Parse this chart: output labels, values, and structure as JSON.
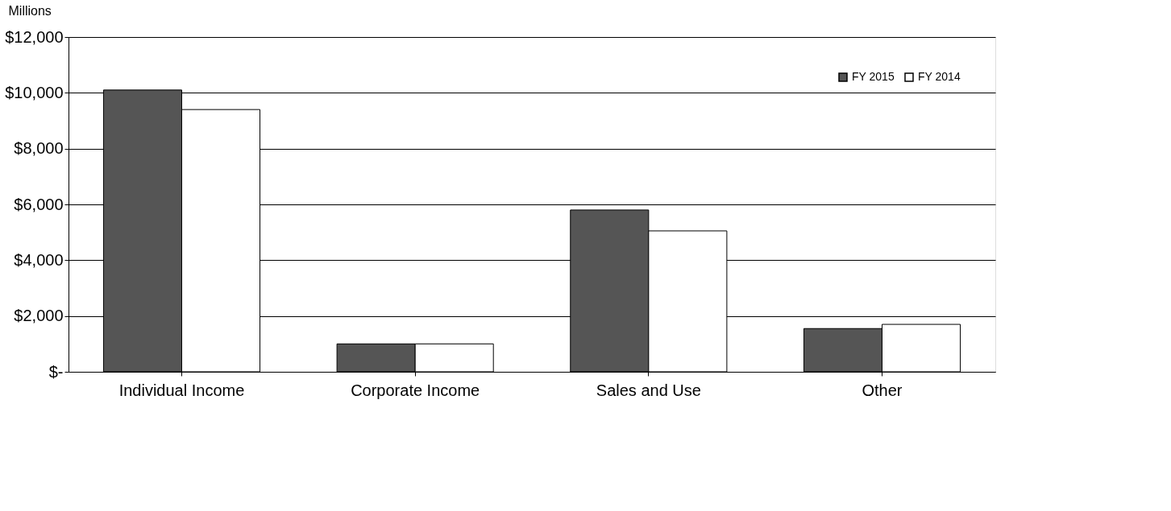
{
  "chart_data": {
    "type": "bar",
    "ylabel": "Millions",
    "categories": [
      "Individual Income",
      "Corporate Income",
      "Sales and Use",
      "Other"
    ],
    "series": [
      {
        "name": "FY 2015",
        "color": "#555555",
        "values": [
          10100,
          1000,
          5800,
          1550
        ]
      },
      {
        "name": "FY 2014",
        "color": "#ffffff",
        "values": [
          9400,
          1000,
          5050,
          1700
        ]
      }
    ],
    "ylim": [
      0,
      12000
    ],
    "yticks": [
      {
        "value": 0,
        "label": "$-"
      },
      {
        "value": 2000,
        "label": "$2,000"
      },
      {
        "value": 4000,
        "label": "$4,000"
      },
      {
        "value": 6000,
        "label": "$6,000"
      },
      {
        "value": 8000,
        "label": "$8,000"
      },
      {
        "value": 10000,
        "label": "$10,000"
      },
      {
        "value": 12000,
        "label": "$12,000"
      }
    ],
    "grid": "y",
    "legend": "top right"
  }
}
